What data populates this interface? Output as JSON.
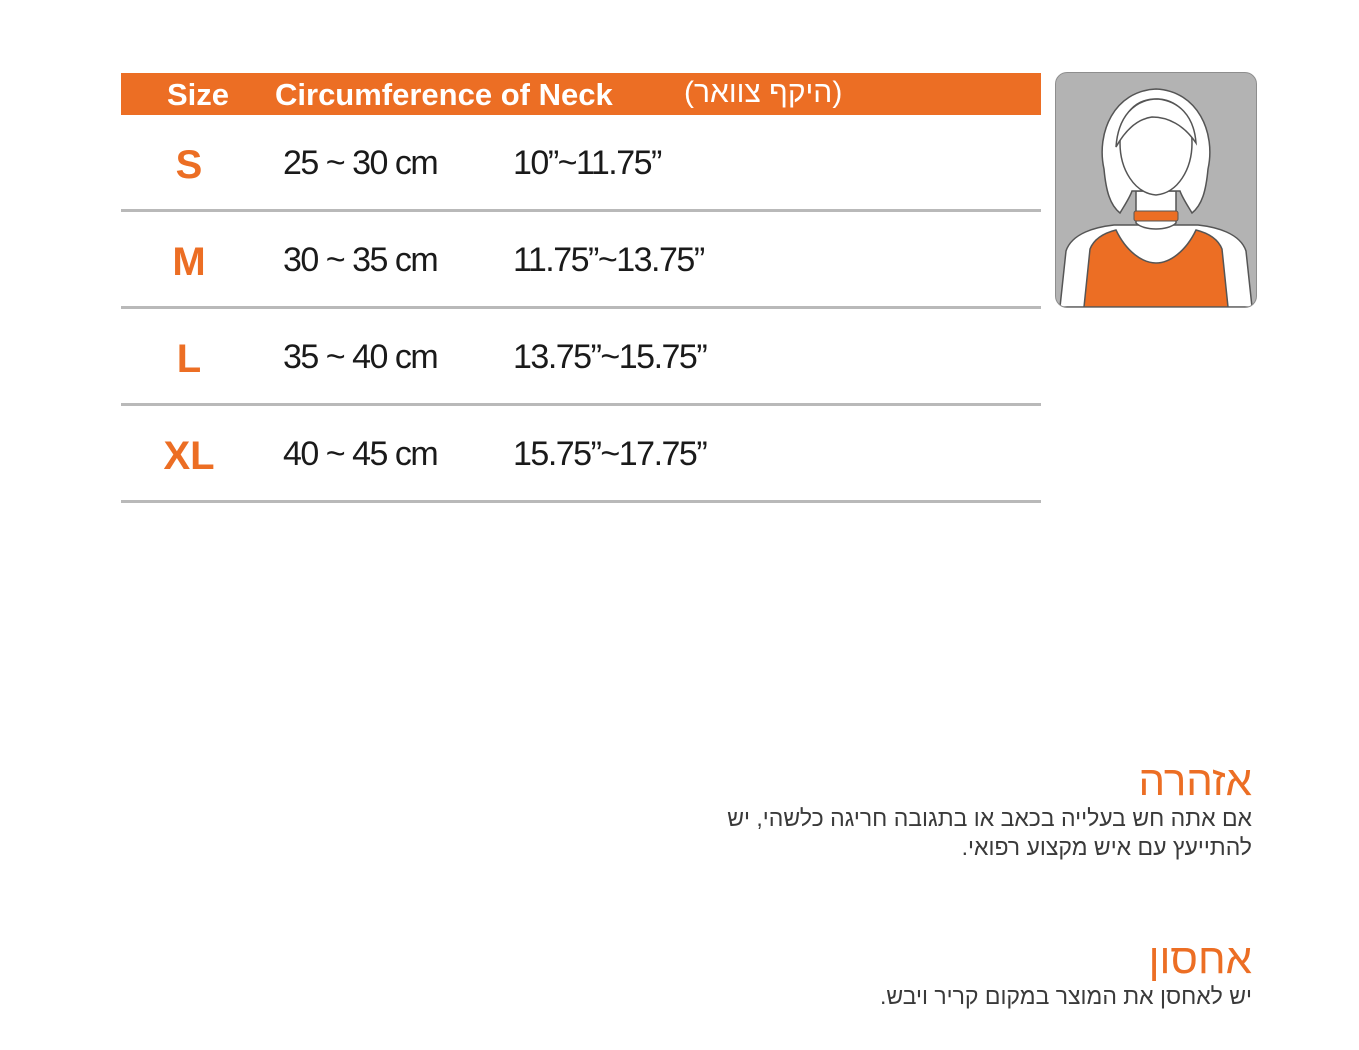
{
  "table": {
    "header": {
      "size": "Size",
      "circumference": "Circumference of Neck",
      "circumference_hebrew": "(היקף צוואר)"
    },
    "rows": [
      {
        "size": "S",
        "cm": "25 ~ 30 cm",
        "inch": "10”~11.75”"
      },
      {
        "size": "M",
        "cm": "30 ~ 35 cm",
        "inch": "11.75”~13.75”"
      },
      {
        "size": "L",
        "cm": "35 ~ 40 cm",
        "inch": "13.75”~15.75”"
      },
      {
        "size": "XL",
        "cm": "40 ~ 45 cm",
        "inch": "15.75”~17.75”"
      }
    ]
  },
  "notes": {
    "warning": {
      "title": "אזהרה",
      "line1": "אם אתה חש בעלייה בכאב או בתגובה חריגה כלשהי, יש",
      "line2": "להתייעץ עם איש מקצוע רפואי."
    },
    "storage": {
      "title": "אחסון",
      "line1": "יש לאחסן את המוצר במקום קריר ויבש."
    }
  },
  "colors": {
    "accent": "#ec6e24",
    "divider": "#b9b9b9",
    "illustration_bg": "#b3b3b3",
    "text": "#1a1a1a"
  },
  "illustration": {
    "icon": "neck-measurement-figure-icon"
  }
}
